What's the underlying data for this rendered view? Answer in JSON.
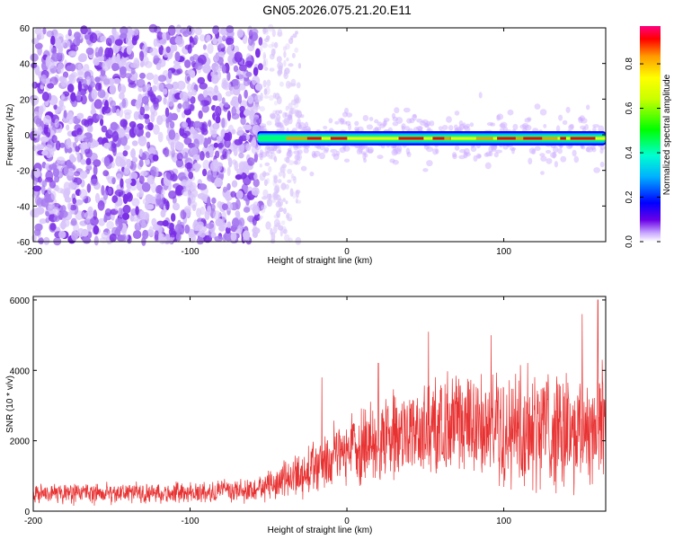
{
  "title": "GN05.2026.075.21.20.E11",
  "colors": {
    "speckle": "#7a2ee6",
    "snr_line": "#e83232",
    "axis": "#000000"
  },
  "chart_data": [
    {
      "type": "heatmap",
      "title": "GN05.2026.075.21.20.E11",
      "xlabel": "Height of straight line (km)",
      "ylabel": "Frequency (Hz)",
      "xlim": [
        -200,
        165
      ],
      "ylim": [
        -60,
        60
      ],
      "xticks": [
        "-200",
        "-100",
        "0",
        "100"
      ],
      "yticks": [
        "-60",
        "-40",
        "-20",
        "0",
        "20",
        "40",
        "60"
      ],
      "grid": false,
      "description_values": {
        "noise_region_x": [
          -200,
          -55
        ],
        "noise_fade_x": [
          -55,
          -30
        ],
        "signal_band_x": [
          -57,
          165
        ],
        "signal_band_center_freq": -2,
        "signal_band_halfwidth": 4
      },
      "colorbar": {
        "label": "Normalized spectral amplitude",
        "range": [
          0,
          0.97
        ],
        "ticks": [
          "0.0",
          "0.2",
          "0.4",
          "0.6",
          "0.8"
        ]
      }
    },
    {
      "type": "line",
      "xlabel": "Height of straight line (km)",
      "ylabel": "SNR (10 * v/v)",
      "xlim": [
        -200,
        165
      ],
      "ylim": [
        0,
        6100
      ],
      "xticks": [
        "-200",
        "-100",
        "0",
        "100"
      ],
      "yticks": [
        "0",
        "2000",
        "4000",
        "6000"
      ],
      "grid": false,
      "trend": {
        "x": [
          -200,
          -100,
          -60,
          -40,
          -20,
          0,
          20,
          40,
          60,
          80,
          100,
          120,
          140,
          160,
          165
        ],
        "y": [
          500,
          520,
          600,
          900,
          1300,
          1700,
          2000,
          2200,
          2300,
          2400,
          2400,
          2500,
          2400,
          2500,
          2400
        ]
      },
      "spread": {
        "x": [
          -200,
          -60,
          -30,
          0,
          40,
          100,
          165
        ],
        "y": [
          200,
          260,
          500,
          800,
          1000,
          1300,
          1500
        ]
      },
      "peaks": [
        {
          "x": 160,
          "y": 6000
        },
        {
          "x": 150,
          "y": 5600
        },
        {
          "x": 52,
          "y": 5100
        },
        {
          "x": 92,
          "y": 5000
        },
        {
          "x": -16,
          "y": 3800
        },
        {
          "x": 20,
          "y": 4200
        }
      ]
    }
  ]
}
